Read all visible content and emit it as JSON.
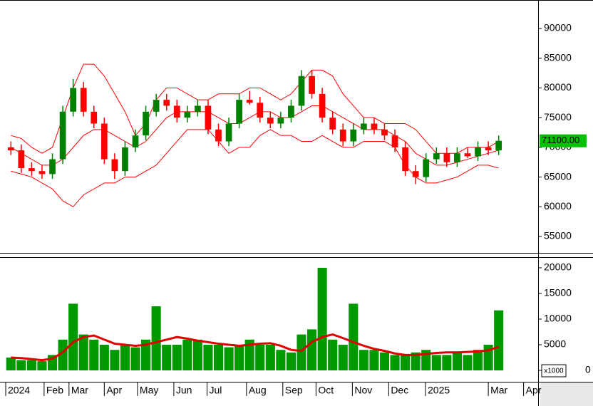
{
  "chart_data": [
    {
      "type": "candlestick",
      "xlim": [
        -0.5,
        50.8
      ],
      "ylim": [
        52240,
        94800
      ],
      "yticks": [
        55000,
        60000,
        65000,
        70000,
        75000,
        80000,
        85000,
        90000
      ],
      "up_color": "#008000",
      "down_color": "#ff0000",
      "band_color": "#ff0000",
      "open": [
        70000,
        69500,
        66500,
        66000,
        65500,
        68000,
        76000,
        80000,
        76000,
        74000,
        68000,
        66000,
        70000,
        72000,
        76000,
        78000,
        77000,
        75000,
        76000,
        77000,
        73000,
        71000,
        74000,
        78000,
        77500,
        75000,
        74000,
        75000,
        77000,
        82000,
        79000,
        75000,
        73000,
        71000,
        73000,
        74000,
        73000,
        72000,
        70000,
        66000,
        65000,
        68000,
        69000,
        67500,
        69000,
        68500,
        70000,
        69500
      ],
      "high": [
        71000,
        70500,
        67500,
        67000,
        69000,
        77000,
        81500,
        81000,
        77000,
        75000,
        69000,
        71000,
        73000,
        77000,
        79000,
        79000,
        78000,
        77000,
        78000,
        78000,
        74000,
        75000,
        79000,
        79500,
        78500,
        76000,
        76000,
        78000,
        83000,
        83000,
        80000,
        76000,
        74000,
        74000,
        75000,
        75000,
        74000,
        73000,
        71000,
        67000,
        69000,
        70000,
        70000,
        70000,
        70000,
        71000,
        71000,
        72000
      ],
      "low": [
        68700,
        65700,
        65200,
        64700,
        64700,
        67200,
        75200,
        75200,
        73200,
        67200,
        64700,
        65200,
        69200,
        71200,
        75200,
        76200,
        74200,
        74200,
        75200,
        72200,
        70200,
        70200,
        73200,
        77200,
        74200,
        73200,
        73200,
        74200,
        76200,
        78200,
        74200,
        72200,
        70200,
        70200,
        72200,
        72200,
        71200,
        69200,
        65200,
        63800,
        64200,
        67200,
        66700,
        66700,
        68200,
        67700,
        68700,
        68700
      ],
      "close": [
        69500,
        66500,
        66000,
        65500,
        68000,
        76000,
        80000,
        76000,
        74000,
        68000,
        66000,
        70000,
        72000,
        76000,
        78000,
        77000,
        75000,
        76000,
        77000,
        73000,
        71000,
        74000,
        78000,
        77500,
        75000,
        74000,
        75000,
        77000,
        82000,
        79000,
        75000,
        73000,
        71000,
        73000,
        74000,
        73000,
        72000,
        70000,
        66000,
        65000,
        68000,
        69000,
        67500,
        69000,
        68500,
        70000,
        69500,
        71100
      ],
      "bands": {
        "upper": [
          72000,
          71500,
          70000,
          69000,
          70000,
          75000,
          80000,
          84000,
          84000,
          82000,
          79000,
          76000,
          72000,
          74000,
          78000,
          80000,
          80000,
          79000,
          78000,
          78000,
          79000,
          79000,
          79000,
          80000,
          80000,
          79000,
          78000,
          79000,
          81000,
          83000,
          83000,
          82000,
          79000,
          77000,
          75000,
          75000,
          74000,
          74000,
          74000,
          73000,
          71000,
          69000,
          69000,
          69000,
          70000,
          70000,
          70000,
          71000
        ],
        "middle": [
          70000,
          69000,
          68000,
          67000,
          67000,
          68000,
          70000,
          72000,
          73000,
          73000,
          72000,
          71000,
          70000,
          71000,
          73000,
          75000,
          76000,
          76000,
          76000,
          76000,
          75000,
          74000,
          74000,
          75000,
          76000,
          76000,
          75000,
          75000,
          76000,
          77000,
          77000,
          76000,
          75000,
          74000,
          73000,
          73000,
          73000,
          72000,
          71000,
          69000,
          68000,
          67000,
          67000,
          67500,
          68000,
          68500,
          69000,
          69500
        ],
        "lower": [
          66000,
          65500,
          65000,
          64000,
          63000,
          61000,
          60000,
          62000,
          63000,
          64000,
          64000,
          65000,
          65000,
          66000,
          67000,
          69000,
          71000,
          73000,
          73000,
          73000,
          71000,
          69000,
          70000,
          70000,
          72000,
          73000,
          72000,
          72000,
          71000,
          71000,
          72000,
          71000,
          70000,
          70000,
          71000,
          71000,
          71000,
          70000,
          67000,
          65000,
          64000,
          64000,
          64500,
          65000,
          66000,
          67000,
          67000,
          66500
        ]
      },
      "last_label": {
        "value": 71100,
        "label": "71100.00"
      }
    },
    {
      "type": "bar",
      "unit_label": "x1000",
      "xlim": [
        -0.5,
        50.8
      ],
      "ylim": [
        0,
        21940
      ],
      "yticks": [
        0,
        5000,
        10000,
        15000,
        20000
      ],
      "color": "#009900",
      "ma_color": "#e00000",
      "values": [
        2500,
        2000,
        2000,
        1800,
        3000,
        6000,
        13000,
        7000,
        6000,
        5000,
        4000,
        5000,
        4500,
        6000,
        12500,
        5000,
        5000,
        6000,
        6000,
        5000,
        5000,
        4500,
        5000,
        6000,
        5000,
        5000,
        4000,
        3500,
        7000,
        8000,
        20000,
        6000,
        5000,
        13000,
        4000,
        4000,
        3500,
        3000,
        3000,
        3500,
        4000,
        3000,
        3000,
        3500,
        3000,
        4000,
        5000,
        11700
      ],
      "ma": [
        2500,
        2400,
        2200,
        2000,
        2300,
        3500,
        5500,
        6500,
        6800,
        6000,
        5200,
        5000,
        4800,
        5000,
        5500,
        6000,
        6500,
        6200,
        5800,
        5500,
        5200,
        5000,
        4800,
        5000,
        5200,
        5300,
        4800,
        4000,
        3800,
        5500,
        6500,
        7000,
        6300,
        5500,
        4800,
        4200,
        3800,
        3300,
        3000,
        3000,
        3200,
        3400,
        3500,
        3500,
        3600,
        3700,
        3900,
        4600
      ],
      "xticks": [
        {
          "value": -0.5,
          "label": "2024"
        },
        {
          "value": 3.2,
          "label": "Feb"
        },
        {
          "value": 5.6,
          "label": "Mar"
        },
        {
          "value": 9,
          "label": "Apr"
        },
        {
          "value": 12.2,
          "label": "May"
        },
        {
          "value": 15.7,
          "label": "Jun"
        },
        {
          "value": 18.9,
          "label": "Jul"
        },
        {
          "value": 22.7,
          "label": "Aug"
        },
        {
          "value": 26.2,
          "label": "Sep"
        },
        {
          "value": 29.4,
          "label": "Oct"
        },
        {
          "value": 32.9,
          "label": "Nov"
        },
        {
          "value": 36.4,
          "label": "Dec"
        },
        {
          "value": 39.95,
          "label": "2025"
        },
        {
          "value": 46,
          "label": "Mar"
        },
        {
          "value": 49.4,
          "label": "Apr"
        }
      ]
    }
  ]
}
